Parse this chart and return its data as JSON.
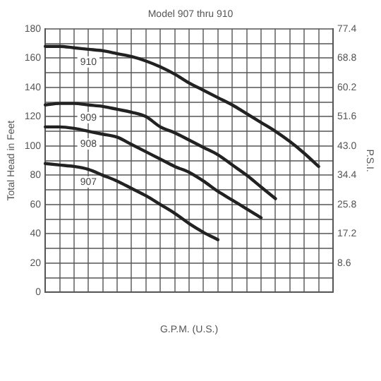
{
  "chart_data": {
    "type": "line",
    "title": "Model 907 thru 910",
    "xlabel": "G.P.M. (U.S.)",
    "ylabel": "Total Head in Feet",
    "y2label": "P.S.I.",
    "categories": [
      null,
      null,
      null,
      null,
      null,
      null,
      null,
      null,
      null,
      null,
      null,
      null,
      null,
      null,
      null,
      null,
      null,
      null,
      null,
      null,
      null
    ],
    "series": [
      {
        "name": "910",
        "color": "#222222",
        "values": [
          168,
          168,
          167,
          166,
          165,
          163,
          161,
          158,
          154,
          149,
          143,
          138,
          133,
          128,
          122,
          116,
          110,
          103,
          95,
          86,
          null
        ]
      },
      {
        "name": "909",
        "color": "#222222",
        "values": [
          128,
          129,
          129,
          128,
          127,
          125,
          123,
          120,
          113,
          109,
          104,
          99,
          94,
          87,
          80,
          72,
          64,
          null,
          null,
          null,
          null
        ]
      },
      {
        "name": "908",
        "color": "#222222",
        "values": [
          113,
          113,
          112,
          110,
          108,
          106,
          101,
          96,
          91,
          86,
          82,
          76,
          69,
          63,
          57,
          51,
          null,
          null,
          null,
          null,
          null
        ]
      },
      {
        "name": "907",
        "color": "#222222",
        "values": [
          88,
          87,
          86,
          84,
          80,
          76,
          71,
          66,
          60,
          54,
          47,
          41,
          36,
          null,
          null,
          null,
          null,
          null,
          null,
          null,
          null
        ]
      }
    ],
    "ylim": [
      0,
      180
    ],
    "yticks": [
      0,
      {
        "value": 10,
        "label": null
      },
      20,
      {
        "value": 30,
        "label": null
      },
      40,
      {
        "value": 50,
        "label": null
      },
      60,
      {
        "value": 70,
        "label": null
      },
      80,
      {
        "value": 90,
        "label": null
      },
      100,
      {
        "value": 110,
        "label": null
      },
      120,
      {
        "value": 130,
        "label": null
      },
      140,
      {
        "value": 150,
        "label": null
      },
      160,
      {
        "value": 170,
        "label": null
      },
      180
    ],
    "y2lim": [
      0,
      77.4
    ],
    "y2ticks": [
      8.6,
      17.2,
      25.8,
      34.4,
      {
        "value": 43,
        "label": "43.0"
      },
      51.6,
      60.2,
      68.8,
      77.4
    ],
    "grid": true,
    "legend": false,
    "marker": "none",
    "line_style": "solid"
  }
}
